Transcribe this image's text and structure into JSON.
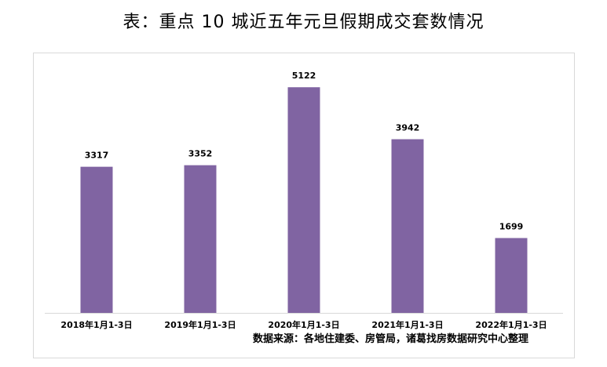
{
  "title": "表：重点 10 城近五年元旦假期成交套数情况",
  "source": "数据来源：各地住建委、房管局，诸葛找房数据研究中心整理",
  "colors": {
    "bar": "#8064a2",
    "axis": "#d9d9d9",
    "frame": "#d9d9d9",
    "text": "#000000"
  },
  "chart_data": {
    "type": "bar",
    "title": "表：重点 10 城近五年元旦假期成交套数情况",
    "xlabel": "",
    "ylabel": "",
    "categories": [
      "2018年1月1-3日",
      "2019年1月1-3日",
      "2020年1月1-3日",
      "2021年1月1-3日",
      "2022年1月1-3日"
    ],
    "values": [
      3317,
      3352,
      5122,
      3942,
      1699
    ],
    "data_labels": [
      "3317",
      "3352",
      "5122",
      "3942",
      "1699"
    ],
    "ylim": [
      0,
      5500
    ],
    "grid": false,
    "legend": "none"
  }
}
